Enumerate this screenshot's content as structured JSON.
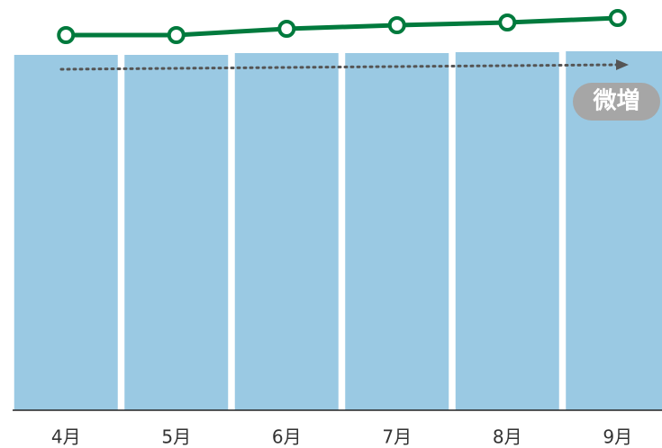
{
  "chart_data": {
    "type": "bar",
    "categories": [
      "4月",
      "5月",
      "6月",
      "7月",
      "8月",
      "9月"
    ],
    "series": [
      {
        "type": "bar",
        "color": "#9ac9e3",
        "values": [
          98.75,
          98.75,
          99.25,
          99.25,
          99.5,
          99.75
        ]
      },
      {
        "type": "line",
        "color": "#007a3d",
        "values": [
          104.25,
          104.25,
          106,
          107,
          107.75,
          109
        ]
      }
    ],
    "ylim": [
      0,
      110
    ],
    "annotation": "微増"
  }
}
